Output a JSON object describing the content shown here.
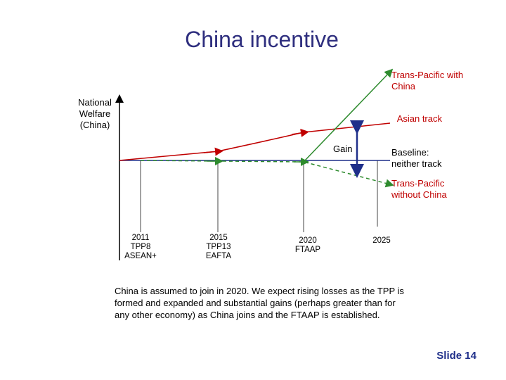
{
  "title": "China incentive",
  "y_axis_label": "National Welfare (China)",
  "lines": {
    "trans_pacific_with_china": {
      "label": "Trans-Pacific with China",
      "color": "#2e8b2e"
    },
    "asian_track": {
      "label": "Asian track",
      "color": "#c00000"
    },
    "baseline": {
      "label": "Baseline: neither track",
      "color": "#1f2f8a"
    },
    "trans_pacific_without_china": {
      "label": "Trans-Pacific without China",
      "color": "#2e8b2e"
    }
  },
  "gain_label": "Gain",
  "milestones": [
    {
      "year": "2011",
      "events": [
        "TPP8",
        "ASEAN+"
      ]
    },
    {
      "year": "2015",
      "events": [
        "TPP13",
        "EAFTA"
      ]
    },
    {
      "year": "2020",
      "events": [
        "FTAAP"
      ]
    },
    {
      "year": "2025",
      "events": []
    }
  ],
  "note": "China is assumed to join in 2020. We expect rising losses as the TPP is formed and expanded and substantial gains (perhaps greater than for any other economy) as China joins and the FTAAP is established.",
  "slide_label": "Slide 14"
}
